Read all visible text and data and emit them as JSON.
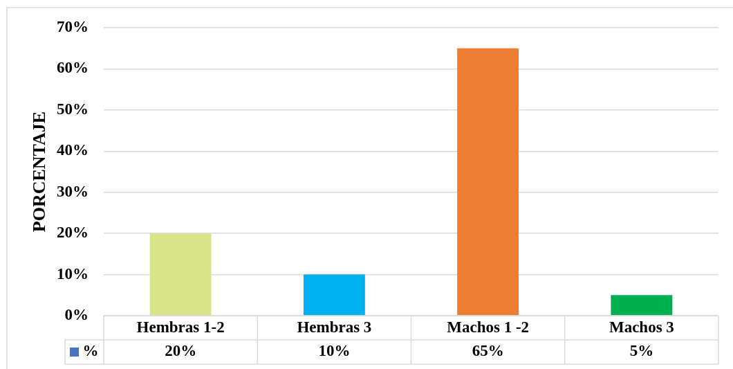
{
  "chart_data": {
    "type": "bar",
    "ylabel": "PORCENTAJE",
    "categories": [
      "Hembras 1-2",
      "Hembras 3",
      "Machos 1 -2",
      "Machos 3"
    ],
    "series": [
      {
        "name": "%",
        "color": "#4472c4",
        "colors": [
          "#d9e38a",
          "#00b0f0",
          "#ed7d31",
          "#00b050"
        ],
        "values": [
          20,
          10,
          65,
          5
        ],
        "value_labels": [
          "20%",
          "10%",
          "65%",
          "5%"
        ]
      }
    ],
    "ylim": [
      0,
      70
    ],
    "yticks": [
      {
        "value": 0,
        "label": "0%"
      },
      {
        "value": 10,
        "label": "10%"
      },
      {
        "value": 20,
        "label": "20%"
      },
      {
        "value": 30,
        "label": "30%"
      },
      {
        "value": 40,
        "label": "40%"
      },
      {
        "value": 50,
        "label": "50%"
      },
      {
        "value": 60,
        "label": "60%"
      },
      {
        "value": 70,
        "label": "70%"
      }
    ],
    "grid": "y",
    "legend": "bottom"
  }
}
